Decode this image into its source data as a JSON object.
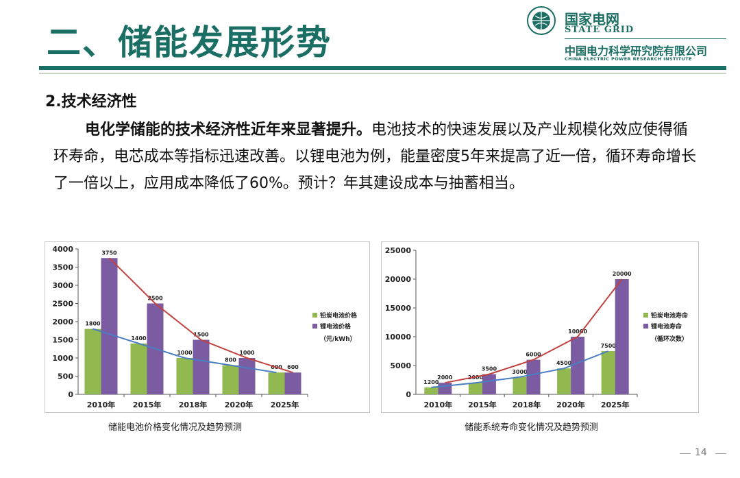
{
  "slide": {
    "title": "二、储能发展形势",
    "section_heading": "2.技术经济性",
    "paragraph_lead": "电化学储能的技术经济性近年来显著提升。",
    "paragraph_body": "电池技术的快速发展以及产业规模化效应使得循环寿命，电芯成本等指标迅速改善。以锂电池为例，能量密度5年来提高了近一倍，循环寿命增长了一倍以上，应用成本降低了60%。预计？年其建设成本与抽蓄相当。",
    "page_number": "14"
  },
  "logo": {
    "brand_cn": "国家电网",
    "brand_en": "STATE GRID",
    "institute_cn": "中国电力科学研究院有限公司",
    "institute_en": "CHINA ELECTRIC POWER RESEARCH INSTITUTE",
    "color": "#1a6e63"
  },
  "captions": {
    "left": "储能电池价格变化情况及趋势预测",
    "right": "储能系统寿命变化情况及趋势预测"
  },
  "chart_data": [
    {
      "type": "bar",
      "categories": [
        "2010年",
        "2015年",
        "2018年",
        "2020年",
        "2025年"
      ],
      "series": [
        {
          "name": "铅炭电池价格",
          "values": [
            1800,
            1400,
            1000,
            800,
            600
          ],
          "color": "#92b850",
          "trend_color": "#4a7ec2"
        },
        {
          "name": "锂电池价格",
          "values": [
            3750,
            2500,
            1500,
            1000,
            600
          ],
          "color": "#7b5ca3",
          "trend_color": "#c0433f"
        }
      ],
      "ylim": [
        0,
        4000
      ],
      "yticks": [
        0,
        500,
        1000,
        1500,
        2000,
        2500,
        3000,
        3500,
        4000
      ],
      "unit_note": "（元/kWh）",
      "trend_lines": true,
      "legend": "right"
    },
    {
      "type": "bar",
      "categories": [
        "2010年",
        "2015年",
        "2018年",
        "2020年",
        "2025年"
      ],
      "series": [
        {
          "name": "铅炭电池寿命",
          "values": [
            1200,
            2000,
            3000,
            4500,
            7500
          ],
          "color": "#92b850",
          "trend_color": "#4a7ec2"
        },
        {
          "name": "锂电池寿命",
          "values": [
            2000,
            3500,
            6000,
            10000,
            20000
          ],
          "color": "#7b5ca3",
          "trend_color": "#c0433f"
        }
      ],
      "ylim": [
        0,
        25000
      ],
      "yticks": [
        0,
        5000,
        10000,
        15000,
        20000,
        25000
      ],
      "unit_note": "（循环次数）",
      "trend_lines": true,
      "legend": "right"
    }
  ]
}
